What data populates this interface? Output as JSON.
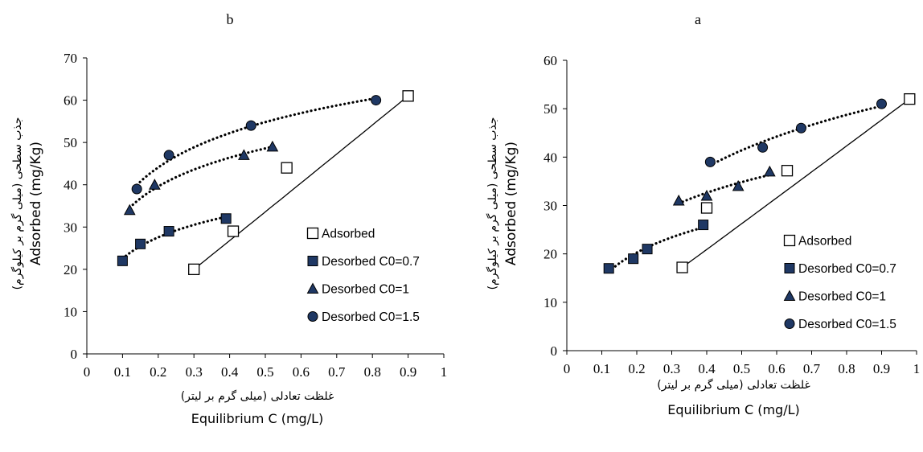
{
  "chart_data": [
    {
      "panel": "b",
      "type": "scatter",
      "xlabel_fa": "غلظت تعادلی (میلی گرم بر لیتر)",
      "xlabel": "Equilibrium C (mg/L)",
      "ylabel_fa": "جذب سطحی (میلی گرم بر کیلوگرم)",
      "ylabel": "Adsorbed (mg/Kg)",
      "xlim": [
        0,
        1
      ],
      "ylim": [
        0,
        70
      ],
      "xticks": [
        "0",
        "0.1",
        "0.2",
        "0.3",
        "0.4",
        "0.5",
        "0.6",
        "0.7",
        "0.8",
        "0.9",
        "1"
      ],
      "yticks": [
        "0",
        "10",
        "20",
        "30",
        "40",
        "50",
        "60",
        "70"
      ],
      "grid": false,
      "legend_position": "right",
      "series": [
        {
          "name": "Adsorbed",
          "marker": "open-square",
          "trendline": "solid",
          "x": [
            0.3,
            0.41,
            0.56,
            0.9
          ],
          "y": [
            20,
            29,
            44,
            61
          ]
        },
        {
          "name": "Desorbed C0=0.7",
          "marker": "filled-square",
          "trendline": "dotted",
          "x": [
            0.1,
            0.15,
            0.23,
            0.39
          ],
          "y": [
            22,
            26,
            29,
            32
          ]
        },
        {
          "name": "Desorbed C0=1",
          "marker": "triangle",
          "trendline": "dotted",
          "x": [
            0.12,
            0.19,
            0.44,
            0.52
          ],
          "y": [
            34,
            40,
            47,
            49
          ]
        },
        {
          "name": "Desorbed C0=1.5",
          "marker": "circle",
          "trendline": "dotted",
          "x": [
            0.14,
            0.23,
            0.46,
            0.81
          ],
          "y": [
            39,
            47,
            54,
            60
          ]
        }
      ]
    },
    {
      "panel": "a",
      "type": "scatter",
      "xlabel_fa": "غلظت تعادلی (میلی گرم بر لیتر)",
      "xlabel": "Equilibrium C (mg/L)",
      "ylabel_fa": "جذب سطحی (میلی گرم بر کیلوگرم)",
      "ylabel": "Adsorbed (mg/Kg)",
      "xlim": [
        0,
        1
      ],
      "ylim": [
        0,
        60
      ],
      "xticks": [
        "0",
        "0.1",
        "0.2",
        "0.3",
        "0.4",
        "0.5",
        "0.6",
        "0.7",
        "0.8",
        "0.9",
        "1"
      ],
      "yticks": [
        "0",
        "10",
        "20",
        "30",
        "40",
        "50",
        "60"
      ],
      "grid": false,
      "legend_position": "right",
      "series": [
        {
          "name": "Adsorbed",
          "marker": "open-square",
          "trendline": "solid",
          "x": [
            0.33,
            0.4,
            0.63,
            0.98
          ],
          "y": [
            17.2,
            29.5,
            37.2,
            52
          ]
        },
        {
          "name": "Desorbed C0=0.7",
          "marker": "filled-square",
          "trendline": "dotted",
          "x": [
            0.12,
            0.19,
            0.23,
            0.39
          ],
          "y": [
            17,
            19,
            21,
            26
          ]
        },
        {
          "name": "Desorbed C0=1",
          "marker": "triangle",
          "trendline": "dotted",
          "x": [
            0.32,
            0.4,
            0.49,
            0.58
          ],
          "y": [
            31,
            32,
            34,
            37
          ]
        },
        {
          "name": "Desorbed C0=1.5",
          "marker": "circle",
          "trendline": "dotted",
          "x": [
            0.41,
            0.56,
            0.67,
            0.9
          ],
          "y": [
            39,
            42,
            46,
            51
          ]
        }
      ]
    }
  ],
  "colors": {
    "marker_fill": "#1f3864",
    "marker_stroke": "#000000",
    "open_marker_fill": "#ffffff",
    "axis": "#000000"
  }
}
